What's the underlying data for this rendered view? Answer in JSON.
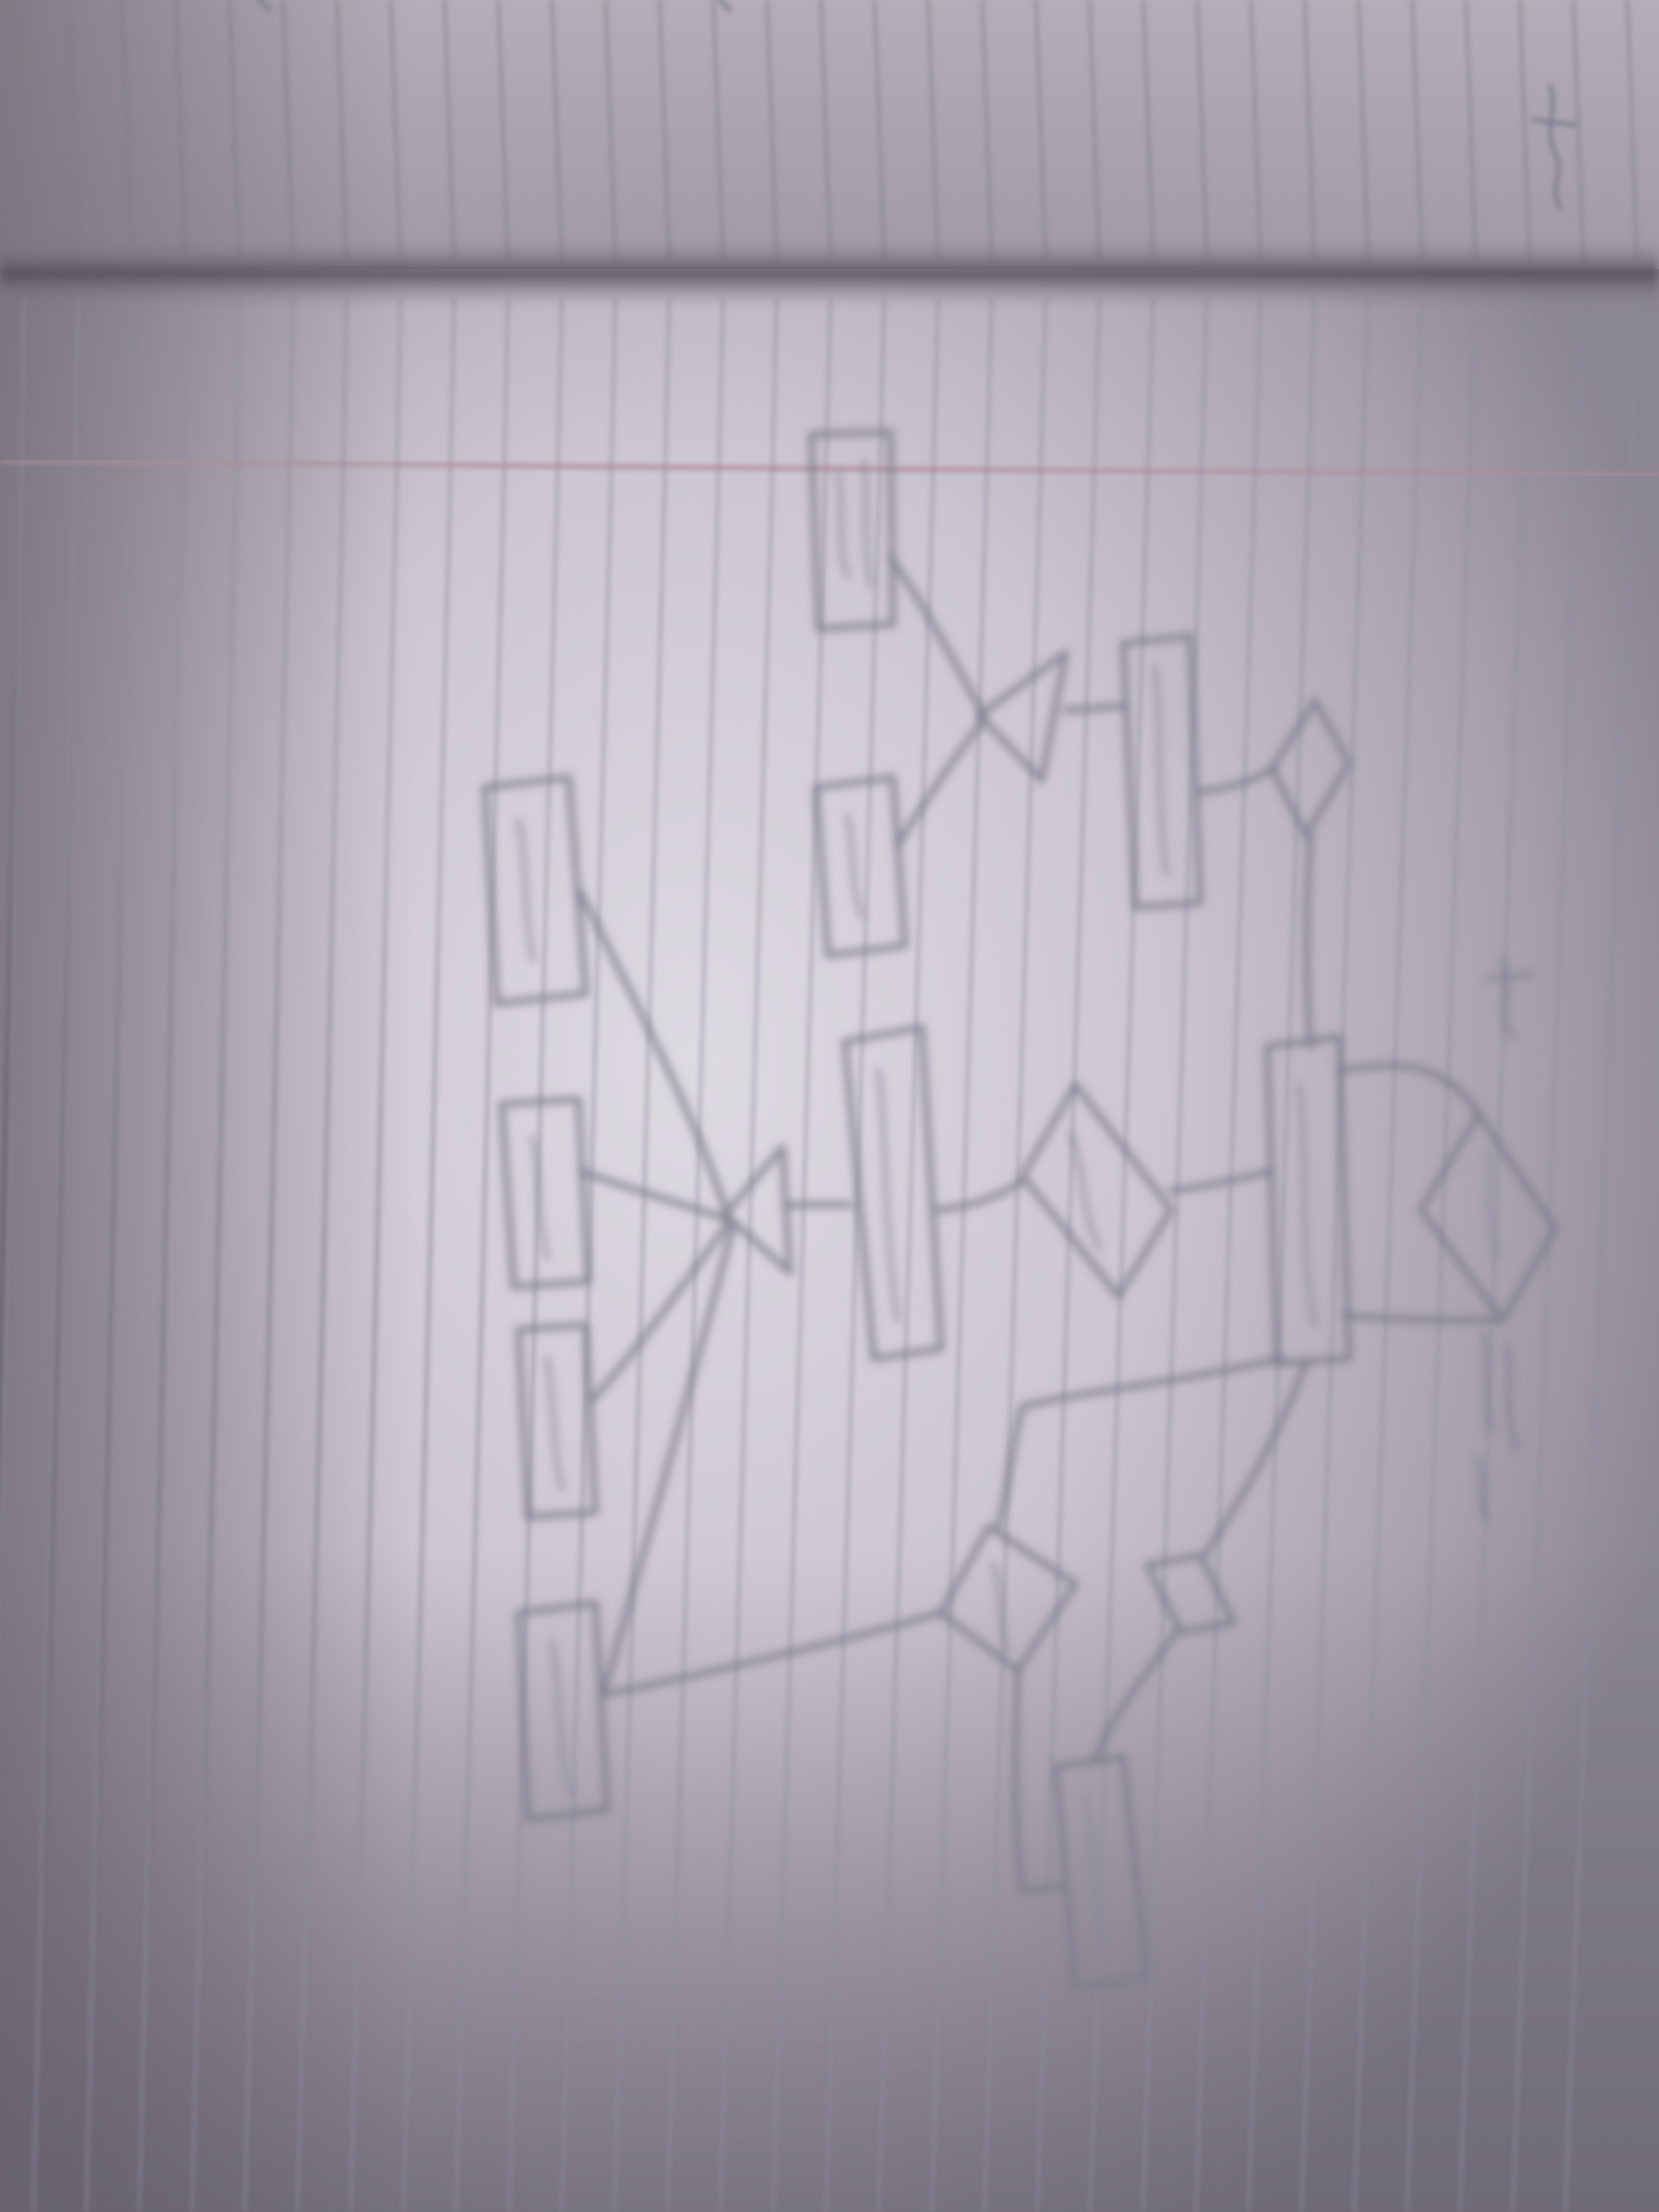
{
  "image": {
    "subject": "photo-of-notebook-with-er-diagram",
    "colors": {
      "paper_light": "#d9d4dc",
      "paper_shadow": "#8f8b96",
      "pencil": "#7d7b8c",
      "margin_line": "#b78a98",
      "spine_shadow": "#4f4a55"
    }
  }
}
